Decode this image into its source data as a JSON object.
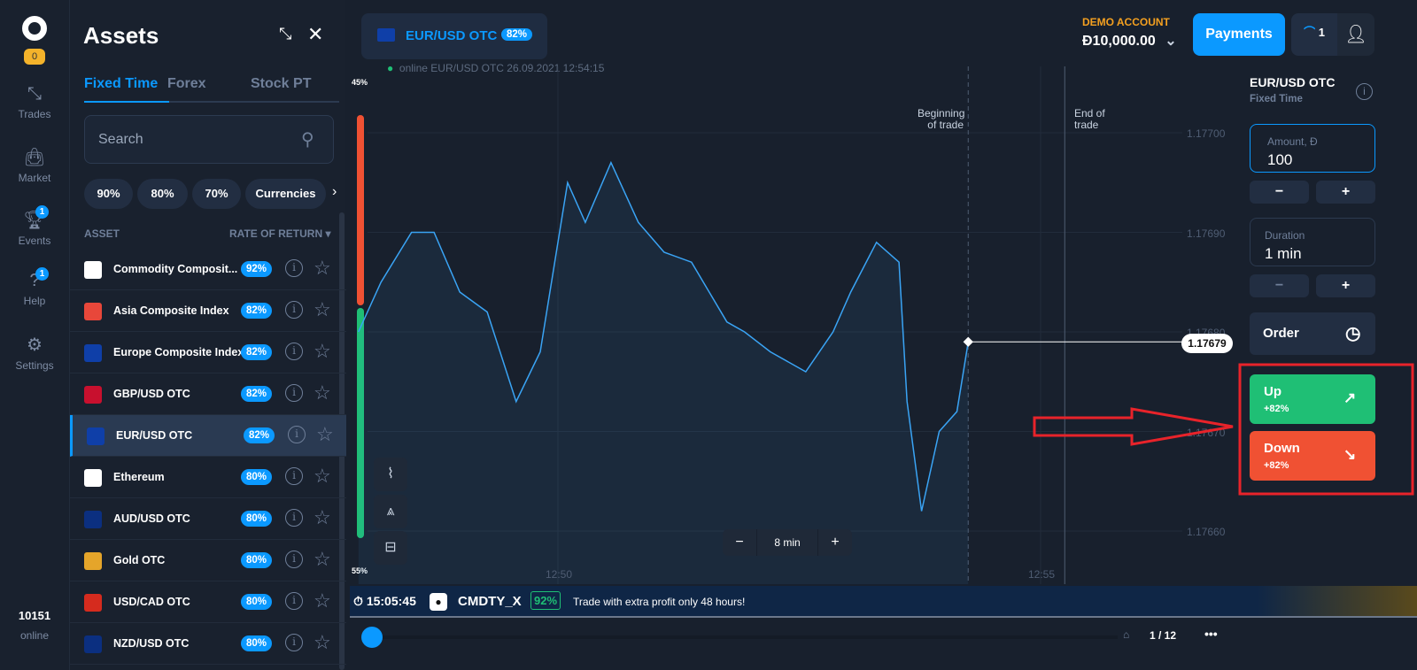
{
  "nav": {
    "level": "0",
    "items": [
      {
        "label": "Trades",
        "icon": "arrows-icon"
      },
      {
        "label": "Market",
        "icon": "bag-icon"
      },
      {
        "label": "Events",
        "icon": "trophy-icon",
        "badge": "1"
      },
      {
        "label": "Help",
        "icon": "help-icon",
        "badge": "1"
      },
      {
        "label": "Settings",
        "icon": "gear-icon"
      }
    ],
    "online_count": "10151",
    "online_label": "online"
  },
  "assets": {
    "title": "Assets",
    "tabs": [
      "Fixed Time",
      "Forex",
      "Stock PT"
    ],
    "active_tab": "Fixed Time",
    "search_placeholder": "Search",
    "chips": [
      "90%",
      "80%",
      "70%",
      "Currencies"
    ],
    "col_asset": "ASSET",
    "col_return": "RATE OF RETURN",
    "rows": [
      {
        "name": "Commodity Composit...",
        "rate": "92%",
        "flag": "#ffffff"
      },
      {
        "name": "Asia Composite Index",
        "rate": "82%",
        "flag": "#e8473a"
      },
      {
        "name": "Europe Composite Index",
        "rate": "82%",
        "flag": "#0f3fa8"
      },
      {
        "name": "GBP/USD OTC",
        "rate": "82%",
        "flag": "#c8102e"
      },
      {
        "name": "EUR/USD OTC",
        "rate": "82%",
        "flag": "#0f3fa8",
        "selected": true
      },
      {
        "name": "Ethereum",
        "rate": "80%",
        "flag": "#ffffff"
      },
      {
        "name": "AUD/USD OTC",
        "rate": "80%",
        "flag": "#0b2f80"
      },
      {
        "name": "Gold OTC",
        "rate": "80%",
        "flag": "#e5a52a"
      },
      {
        "name": "USD/CAD OTC",
        "rate": "80%",
        "flag": "#d52b1e"
      },
      {
        "name": "NZD/USD OTC",
        "rate": "80%",
        "flag": "#0b2f80"
      }
    ]
  },
  "header": {
    "asset": "EUR/USD OTC",
    "asset_rate": "82%",
    "account_label": "DEMO ACCOUNT",
    "balance": "Đ10,000.00",
    "payments": "Payments",
    "notif_count": "1"
  },
  "chart": {
    "status": "online EUR/USD OTC  26.09.2021 12:54:15",
    "top_pct": "45%",
    "bottom_pct": "55%",
    "begin_label": [
      "Beginning",
      "of trade"
    ],
    "end_label": [
      "End of",
      "trade"
    ],
    "y_ticks": [
      "1.17700",
      "1.17690",
      "1.17680",
      "1.17670",
      "1.17660"
    ],
    "x_ticks": [
      "12:50",
      "12:55"
    ],
    "current_price": "1.17679",
    "timeframe": "8 min",
    "line_color": "#3aa4f5",
    "sentiment_up": 0.55,
    "sentiment_down": 0.45,
    "series": [
      [
        "12:47:56",
        1.1768
      ],
      [
        "12:48:10",
        1.17685
      ],
      [
        "12:48:29",
        1.1769
      ],
      [
        "12:48:43",
        1.1769
      ],
      [
        "12:48:59",
        1.17684
      ],
      [
        "12:49:16",
        1.17682
      ],
      [
        "12:49:34",
        1.17673
      ],
      [
        "12:49:49",
        1.17678
      ],
      [
        "12:50:06",
        1.17695
      ],
      [
        "12:50:17",
        1.17691
      ],
      [
        "12:50:33",
        1.17697
      ],
      [
        "12:50:50",
        1.17691
      ],
      [
        "12:51:06",
        1.17688
      ],
      [
        "12:51:23",
        1.17687
      ],
      [
        "12:51:34",
        1.17684
      ],
      [
        "12:51:45",
        1.17681
      ],
      [
        "12:51:56",
        1.1768
      ],
      [
        "12:52:12",
        1.17678
      ],
      [
        "12:52:34",
        1.17676
      ],
      [
        "12:52:51",
        1.1768
      ],
      [
        "12:53:02",
        1.17684
      ],
      [
        "12:53:18",
        1.17689
      ],
      [
        "12:53:32",
        1.17687
      ],
      [
        "12:53:37",
        1.17673
      ],
      [
        "12:53:46",
        1.17662
      ],
      [
        "12:53:57",
        1.1767
      ],
      [
        "12:54:08",
        1.17672
      ],
      [
        "12:54:15",
        1.17679
      ]
    ]
  },
  "trade": {
    "asset": "EUR/USD OTC",
    "type": "Fixed Time",
    "amount_label": "Amount, Đ",
    "amount": "100",
    "duration_label": "Duration",
    "duration": "1 min",
    "order": "Order",
    "up": "Up",
    "up_pct": "+82%",
    "down": "Down",
    "down_pct": "+82%",
    "up_color": "#1fbf75",
    "down_color": "#f05133"
  },
  "promo": {
    "time": "15:05:45",
    "ticker": "CMDTY_X",
    "rate": "92%",
    "text": "Trade with extra profit only 48 hours!",
    "page": "1 / 12"
  }
}
